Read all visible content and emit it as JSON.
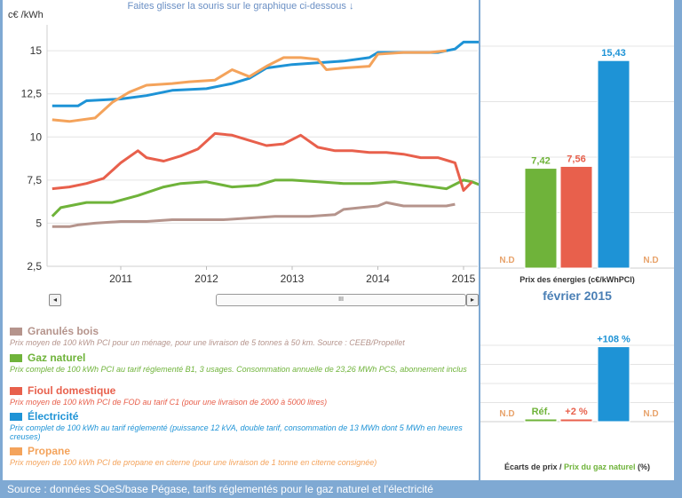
{
  "hint": "Faites glisser la souris sur le graphique ci-dessous ↓",
  "chart_data": [
    {
      "type": "line",
      "ylabel": "c€ /kWh",
      "ylim": [
        2.5,
        16.5
      ],
      "yticks": [
        "2,5",
        "5",
        "7,5",
        "10",
        "12,5",
        "15"
      ],
      "xticks": [
        "2011",
        "2012",
        "2013",
        "2014",
        "2015"
      ],
      "series": [
        {
          "name": "Granulés bois",
          "color": "#b5948c",
          "points": [
            [
              2010.2,
              4.8
            ],
            [
              2010.4,
              4.8
            ],
            [
              2010.5,
              4.9
            ],
            [
              2010.7,
              5.0
            ],
            [
              2011.0,
              5.1
            ],
            [
              2011.3,
              5.1
            ],
            [
              2011.6,
              5.2
            ],
            [
              2011.9,
              5.2
            ],
            [
              2012.2,
              5.2
            ],
            [
              2012.5,
              5.3
            ],
            [
              2012.8,
              5.4
            ],
            [
              2013.0,
              5.4
            ],
            [
              2013.2,
              5.4
            ],
            [
              2013.5,
              5.5
            ],
            [
              2013.6,
              5.8
            ],
            [
              2013.8,
              5.9
            ],
            [
              2014.0,
              6.0
            ],
            [
              2014.1,
              6.2
            ],
            [
              2014.2,
              6.1
            ],
            [
              2014.3,
              6.0
            ],
            [
              2014.6,
              6.0
            ],
            [
              2014.8,
              6.0
            ],
            [
              2014.9,
              6.1
            ]
          ]
        },
        {
          "name": "Gaz naturel",
          "color": "#6fb33a",
          "points": [
            [
              2010.2,
              5.4
            ],
            [
              2010.3,
              5.9
            ],
            [
              2010.6,
              6.2
            ],
            [
              2010.9,
              6.2
            ],
            [
              2011.2,
              6.6
            ],
            [
              2011.5,
              7.1
            ],
            [
              2011.7,
              7.3
            ],
            [
              2012.0,
              7.4
            ],
            [
              2012.3,
              7.1
            ],
            [
              2012.6,
              7.2
            ],
            [
              2012.8,
              7.5
            ],
            [
              2013.0,
              7.5
            ],
            [
              2013.3,
              7.4
            ],
            [
              2013.6,
              7.3
            ],
            [
              2013.9,
              7.3
            ],
            [
              2014.2,
              7.4
            ],
            [
              2014.5,
              7.2
            ],
            [
              2014.8,
              7.0
            ],
            [
              2015.0,
              7.5
            ],
            [
              2015.1,
              7.4
            ],
            [
              2015.2,
              7.2
            ]
          ]
        },
        {
          "name": "Fioul domestique",
          "color": "#e8604c",
          "points": [
            [
              2010.2,
              7.0
            ],
            [
              2010.4,
              7.1
            ],
            [
              2010.6,
              7.3
            ],
            [
              2010.8,
              7.6
            ],
            [
              2011.0,
              8.5
            ],
            [
              2011.2,
              9.2
            ],
            [
              2011.3,
              8.8
            ],
            [
              2011.5,
              8.6
            ],
            [
              2011.7,
              8.9
            ],
            [
              2011.9,
              9.3
            ],
            [
              2012.1,
              10.2
            ],
            [
              2012.3,
              10.1
            ],
            [
              2012.5,
              9.8
            ],
            [
              2012.7,
              9.5
            ],
            [
              2012.9,
              9.6
            ],
            [
              2013.1,
              10.1
            ],
            [
              2013.3,
              9.4
            ],
            [
              2013.5,
              9.2
            ],
            [
              2013.7,
              9.2
            ],
            [
              2013.9,
              9.1
            ],
            [
              2014.1,
              9.1
            ],
            [
              2014.3,
              9.0
            ],
            [
              2014.5,
              8.8
            ],
            [
              2014.7,
              8.8
            ],
            [
              2014.9,
              8.5
            ],
            [
              2015.0,
              6.9
            ],
            [
              2015.1,
              7.4
            ]
          ]
        },
        {
          "name": "Électricité",
          "color": "#1e93d6",
          "points": [
            [
              2010.2,
              11.8
            ],
            [
              2010.5,
              11.8
            ],
            [
              2010.6,
              12.1
            ],
            [
              2011.0,
              12.2
            ],
            [
              2011.3,
              12.4
            ],
            [
              2011.6,
              12.7
            ],
            [
              2012.0,
              12.8
            ],
            [
              2012.3,
              13.1
            ],
            [
              2012.5,
              13.4
            ],
            [
              2012.7,
              14.0
            ],
            [
              2013.0,
              14.2
            ],
            [
              2013.3,
              14.3
            ],
            [
              2013.6,
              14.4
            ],
            [
              2013.9,
              14.6
            ],
            [
              2014.0,
              14.9
            ],
            [
              2014.4,
              14.9
            ],
            [
              2014.7,
              14.9
            ],
            [
              2014.9,
              15.1
            ],
            [
              2015.0,
              15.5
            ],
            [
              2015.2,
              15.5
            ]
          ]
        },
        {
          "name": "Propane",
          "color": "#f4a35b",
          "points": [
            [
              2010.2,
              11.0
            ],
            [
              2010.4,
              10.9
            ],
            [
              2010.7,
              11.1
            ],
            [
              2010.9,
              12.0
            ],
            [
              2011.1,
              12.6
            ],
            [
              2011.3,
              13.0
            ],
            [
              2011.6,
              13.1
            ],
            [
              2011.8,
              13.2
            ],
            [
              2012.1,
              13.3
            ],
            [
              2012.3,
              13.9
            ],
            [
              2012.5,
              13.5
            ],
            [
              2012.7,
              14.1
            ],
            [
              2012.9,
              14.6
            ],
            [
              2013.1,
              14.6
            ],
            [
              2013.3,
              14.5
            ],
            [
              2013.4,
              13.9
            ],
            [
              2013.6,
              14.0
            ],
            [
              2013.9,
              14.1
            ],
            [
              2014.0,
              14.8
            ],
            [
              2014.3,
              14.9
            ],
            [
              2014.6,
              14.9
            ],
            [
              2014.8,
              15.0
            ]
          ]
        }
      ]
    },
    {
      "type": "bar",
      "xlabel": "Prix des énergies (c€/kWhPCI)",
      "ylim": [
        0,
        16.5
      ],
      "categories": [
        "Granulés bois",
        "Gaz naturel",
        "Fioul domestique",
        "Électricité",
        "Propane"
      ],
      "values": [
        null,
        7.42,
        7.56,
        15.43,
        null
      ],
      "value_labels": [
        "N.D",
        "7,42",
        "7,56",
        "15,43",
        "N.D"
      ],
      "colors": [
        "#b5948c",
        "#6fb33a",
        "#e8604c",
        "#1e93d6",
        "#f4a35b"
      ]
    },
    {
      "type": "bar",
      "xlabel_parts": [
        "Écarts de prix /",
        "Prix du gaz naturel",
        "(%)"
      ],
      "ylim": [
        0,
        110
      ],
      "categories": [
        "Granulés bois",
        "Gaz naturel",
        "Fioul domestique",
        "Électricité",
        "Propane"
      ],
      "values": [
        null,
        0,
        2,
        108,
        null
      ],
      "value_labels": [
        "N.D",
        "Réf.",
        "+2 %",
        "+108 %",
        "N.D"
      ],
      "colors": [
        "#b5948c",
        "#6fb33a",
        "#e8604c",
        "#1e93d6",
        "#f4a35b"
      ]
    }
  ],
  "month": "février 2015",
  "scrollbar": {
    "left": "◂",
    "right": "▸",
    "thumb": "III"
  },
  "legend": [
    {
      "title": "Granulés bois",
      "color": "#b5948c",
      "desc": "Prix moyen de 100 kWh PCI pour un ménage, pour une livraison de 5 tonnes à 50 km. Source : CEEB/Propellet"
    },
    {
      "title": "Gaz naturel",
      "color": "#6fb33a",
      "desc": "Prix complet de 100 kWh PCI au tarif réglementé B1, 3 usages. Consommation annuelle de 23,26 MWh PCS, abonnement inclus"
    },
    {
      "title": "Fioul domestique",
      "color": "#e8604c",
      "desc": "Prix moyen de 100 kWh PCI de FOD au tarif C1 (pour une livraison de 2000 à 5000 litres)"
    },
    {
      "title": "Électricité",
      "color": "#1e93d6",
      "desc": "Prix complet de 100 kWh au tarif réglementé (puissance 12 kVA, double tarif, consommation de 13 MWh dont 5 MWh en heures creuses)"
    },
    {
      "title": "Propane",
      "color": "#f4a35b",
      "desc": "Prix moyen de 100 kWh PCI de propane en citerne (pour une livraison de 1 tonne en citerne consignée)"
    }
  ],
  "footer": "Source : données SOeS/base Pégase, tarifs réglementés pour le gaz naturel et l'électricité"
}
